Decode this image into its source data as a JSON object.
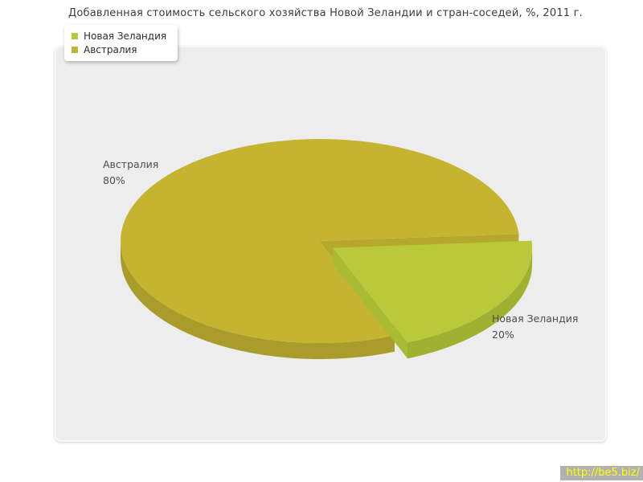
{
  "title": "Добавленная стоимость сельского хозяйства Новой Зеландии и стран-соседей, %, 2011 г.",
  "chart_data": {
    "type": "pie",
    "title": "Добавленная стоимость сельского хозяйства Новой Зеландии и стран-соседей, %, 2011 г.",
    "unit": "%",
    "style": "3d-exploded-pie",
    "legend_position": "top-left",
    "start_angle_deg": -4,
    "slices": [
      {
        "label": "Новая Зеландия",
        "value": 20,
        "display": "20%",
        "color_top": "#b9c93a",
        "color_side": "#9fb130",
        "color_cut": "#a9ba34",
        "exploded": true
      },
      {
        "label": "Австралия",
        "value": 80,
        "display": "80%",
        "color_top": "#c5b430",
        "color_side": "#aa9c2a",
        "color_cut": "#b6a72d",
        "exploded": false
      }
    ]
  },
  "watermark": {
    "text": "http://be5.biz/"
  }
}
